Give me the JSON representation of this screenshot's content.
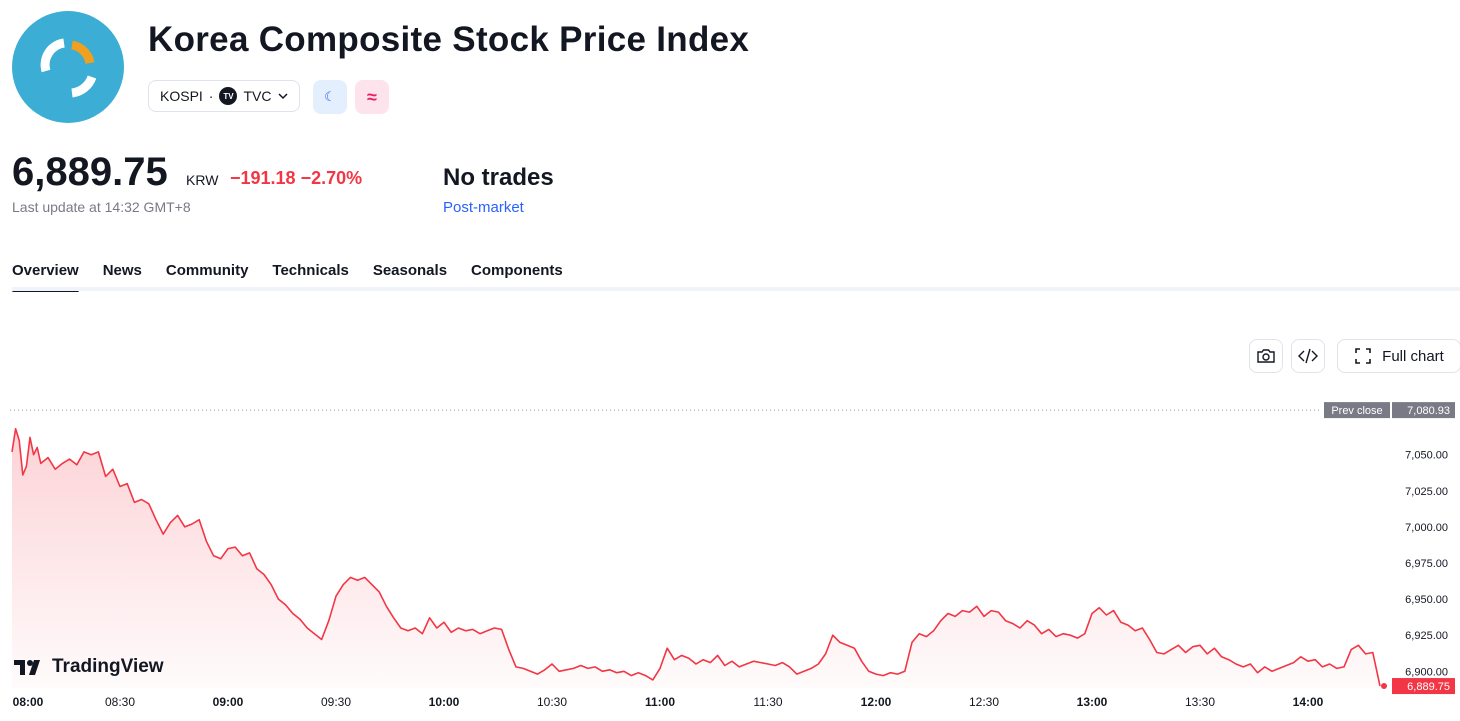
{
  "header": {
    "title": "Korea Composite Stock Price Index",
    "symbol": "KOSPI",
    "separator": "·",
    "exchange": "TVC",
    "exchange_badge": "TV",
    "moon_glyph": "☾",
    "wave_glyph": "≈"
  },
  "quote": {
    "price": "6,889.75",
    "currency": "KRW",
    "change": "−191.18 −2.70%",
    "last_update": "Last update at 14:32 GMT+8",
    "status": "No trades",
    "session": "Post-market"
  },
  "tabs": [
    "Overview",
    "News",
    "Community",
    "Technicals",
    "Seasonals",
    "Components"
  ],
  "toolbar": {
    "full_chart_label": "Full chart"
  },
  "branding": {
    "name": "TradingView"
  },
  "colors": {
    "line": "#f23645",
    "accent": "#2962ff",
    "logo_bg": "#3cadd4",
    "logo_arc": "#f0a01e"
  },
  "icons": [
    "camera-icon",
    "code-icon",
    "fullscreen-icon",
    "chevron-down-icon",
    "moon-icon",
    "wave-icon"
  ],
  "chart_data": {
    "type": "area",
    "title": "",
    "x_ticks": [
      "08:00",
      "08:30",
      "09:00",
      "09:30",
      "10:00",
      "10:30",
      "11:00",
      "11:30",
      "12:00",
      "12:30",
      "13:00",
      "13:30",
      "14:00"
    ],
    "y_ticks": [
      "7,050.00",
      "7,025.00",
      "7,000.00",
      "6,975.00",
      "6,950.00",
      "6,925.00",
      "6,900.00"
    ],
    "ylim": [
      6887,
      7081
    ],
    "prev_close_label": "Prev close",
    "prev_close": 7080.93,
    "last_value_label": "6,889.75",
    "last_value": 6889.75,
    "points": [
      [
        "08:00",
        7052
      ],
      [
        "08:01",
        7068
      ],
      [
        "08:02",
        7060
      ],
      [
        "08:03",
        7036
      ],
      [
        "08:04",
        7042
      ],
      [
        "08:05",
        7062
      ],
      [
        "08:06",
        7050
      ],
      [
        "08:07",
        7055
      ],
      [
        "08:08",
        7044
      ],
      [
        "08:10",
        7048
      ],
      [
        "08:12",
        7040
      ],
      [
        "08:14",
        7044
      ],
      [
        "08:16",
        7047
      ],
      [
        "08:18",
        7043
      ],
      [
        "08:20",
        7052
      ],
      [
        "08:22",
        7050
      ],
      [
        "08:24",
        7052
      ],
      [
        "08:26",
        7035
      ],
      [
        "08:28",
        7040
      ],
      [
        "08:30",
        7028
      ],
      [
        "08:32",
        7030
      ],
      [
        "08:34",
        7017
      ],
      [
        "08:36",
        7019
      ],
      [
        "08:38",
        7016
      ],
      [
        "08:40",
        7005
      ],
      [
        "08:42",
        6995
      ],
      [
        "08:44",
        7003
      ],
      [
        "08:46",
        7008
      ],
      [
        "08:48",
        7000
      ],
      [
        "08:50",
        7002
      ],
      [
        "08:52",
        7005
      ],
      [
        "08:54",
        6990
      ],
      [
        "08:56",
        6980
      ],
      [
        "08:58",
        6978
      ],
      [
        "09:00",
        6985
      ],
      [
        "09:02",
        6986
      ],
      [
        "09:04",
        6980
      ],
      [
        "09:06",
        6982
      ],
      [
        "09:08",
        6971
      ],
      [
        "09:10",
        6967
      ],
      [
        "09:12",
        6960
      ],
      [
        "09:14",
        6950
      ],
      [
        "09:16",
        6946
      ],
      [
        "09:18",
        6940
      ],
      [
        "09:20",
        6936
      ],
      [
        "09:22",
        6930
      ],
      [
        "09:24",
        6926
      ],
      [
        "09:26",
        6922
      ],
      [
        "09:28",
        6935
      ],
      [
        "09:30",
        6952
      ],
      [
        "09:32",
        6960
      ],
      [
        "09:34",
        6965
      ],
      [
        "09:36",
        6963
      ],
      [
        "09:38",
        6965
      ],
      [
        "09:40",
        6960
      ],
      [
        "09:42",
        6955
      ],
      [
        "09:44",
        6945
      ],
      [
        "09:46",
        6937
      ],
      [
        "09:48",
        6930
      ],
      [
        "09:50",
        6928
      ],
      [
        "09:52",
        6930
      ],
      [
        "09:54",
        6926
      ],
      [
        "09:56",
        6937
      ],
      [
        "09:58",
        6930
      ],
      [
        "10:00",
        6934
      ],
      [
        "10:02",
        6927
      ],
      [
        "10:04",
        6930
      ],
      [
        "10:06",
        6928
      ],
      [
        "10:08",
        6929
      ],
      [
        "10:10",
        6926
      ],
      [
        "10:12",
        6928
      ],
      [
        "10:14",
        6930
      ],
      [
        "10:16",
        6929
      ],
      [
        "10:18",
        6915
      ],
      [
        "10:20",
        6903
      ],
      [
        "10:22",
        6902
      ],
      [
        "10:24",
        6900
      ],
      [
        "10:26",
        6898
      ],
      [
        "10:28",
        6901
      ],
      [
        "10:30",
        6905
      ],
      [
        "10:32",
        6900
      ],
      [
        "10:34",
        6901
      ],
      [
        "10:36",
        6902
      ],
      [
        "10:38",
        6904
      ],
      [
        "10:40",
        6902
      ],
      [
        "10:42",
        6903
      ],
      [
        "10:44",
        6900
      ],
      [
        "10:46",
        6901
      ],
      [
        "10:48",
        6899
      ],
      [
        "10:50",
        6900
      ],
      [
        "10:52",
        6897
      ],
      [
        "10:54",
        6899
      ],
      [
        "10:56",
        6897
      ],
      [
        "10:58",
        6894
      ],
      [
        "11:00",
        6902
      ],
      [
        "11:02",
        6916
      ],
      [
        "11:04",
        6908
      ],
      [
        "11:06",
        6911
      ],
      [
        "11:08",
        6909
      ],
      [
        "11:10",
        6905
      ],
      [
        "11:12",
        6908
      ],
      [
        "11:14",
        6906
      ],
      [
        "11:16",
        6911
      ],
      [
        "11:18",
        6904
      ],
      [
        "11:20",
        6907
      ],
      [
        "11:22",
        6903
      ],
      [
        "11:24",
        6905
      ],
      [
        "11:26",
        6907
      ],
      [
        "11:28",
        6906
      ],
      [
        "11:30",
        6905
      ],
      [
        "11:32",
        6904
      ],
      [
        "11:34",
        6906
      ],
      [
        "11:36",
        6903
      ],
      [
        "11:38",
        6898
      ],
      [
        "11:40",
        6900
      ],
      [
        "11:42",
        6902
      ],
      [
        "11:44",
        6905
      ],
      [
        "11:46",
        6912
      ],
      [
        "11:48",
        6925
      ],
      [
        "11:50",
        6920
      ],
      [
        "11:52",
        6918
      ],
      [
        "11:54",
        6916
      ],
      [
        "11:56",
        6907
      ],
      [
        "11:58",
        6900
      ],
      [
        "12:00",
        6898
      ],
      [
        "12:02",
        6897
      ],
      [
        "12:04",
        6899
      ],
      [
        "12:06",
        6898
      ],
      [
        "12:08",
        6900
      ],
      [
        "12:10",
        6920
      ],
      [
        "12:12",
        6926
      ],
      [
        "12:14",
        6924
      ],
      [
        "12:16",
        6928
      ],
      [
        "12:18",
        6935
      ],
      [
        "12:20",
        6940
      ],
      [
        "12:22",
        6938
      ],
      [
        "12:24",
        6942
      ],
      [
        "12:26",
        6941
      ],
      [
        "12:28",
        6945
      ],
      [
        "12:30",
        6938
      ],
      [
        "12:32",
        6942
      ],
      [
        "12:34",
        6941
      ],
      [
        "12:36",
        6935
      ],
      [
        "12:38",
        6933
      ],
      [
        "12:40",
        6930
      ],
      [
        "12:42",
        6935
      ],
      [
        "12:44",
        6932
      ],
      [
        "12:46",
        6926
      ],
      [
        "12:48",
        6929
      ],
      [
        "12:50",
        6924
      ],
      [
        "12:52",
        6926
      ],
      [
        "12:54",
        6925
      ],
      [
        "12:56",
        6923
      ],
      [
        "12:58",
        6926
      ],
      [
        "13:00",
        6940
      ],
      [
        "13:02",
        6944
      ],
      [
        "13:04",
        6939
      ],
      [
        "13:06",
        6942
      ],
      [
        "13:08",
        6934
      ],
      [
        "13:10",
        6932
      ],
      [
        "13:12",
        6928
      ],
      [
        "13:14",
        6930
      ],
      [
        "13:16",
        6922
      ],
      [
        "13:18",
        6913
      ],
      [
        "13:20",
        6912
      ],
      [
        "13:22",
        6915
      ],
      [
        "13:24",
        6918
      ],
      [
        "13:26",
        6913
      ],
      [
        "13:28",
        6917
      ],
      [
        "13:30",
        6918
      ],
      [
        "13:32",
        6912
      ],
      [
        "13:34",
        6916
      ],
      [
        "13:36",
        6910
      ],
      [
        "13:38",
        6908
      ],
      [
        "13:40",
        6905
      ],
      [
        "13:42",
        6903
      ],
      [
        "13:44",
        6905
      ],
      [
        "13:46",
        6899
      ],
      [
        "13:48",
        6903
      ],
      [
        "13:50",
        6900
      ],
      [
        "13:52",
        6902
      ],
      [
        "13:54",
        6904
      ],
      [
        "13:56",
        6906
      ],
      [
        "13:58",
        6910
      ],
      [
        "14:00",
        6907
      ],
      [
        "14:02",
        6908
      ],
      [
        "14:04",
        6903
      ],
      [
        "14:06",
        6905
      ],
      [
        "14:08",
        6902
      ],
      [
        "14:10",
        6903
      ],
      [
        "14:12",
        6915
      ],
      [
        "14:14",
        6918
      ],
      [
        "14:16",
        6912
      ],
      [
        "14:18",
        6913
      ],
      [
        "14:20",
        6889.75
      ]
    ]
  }
}
